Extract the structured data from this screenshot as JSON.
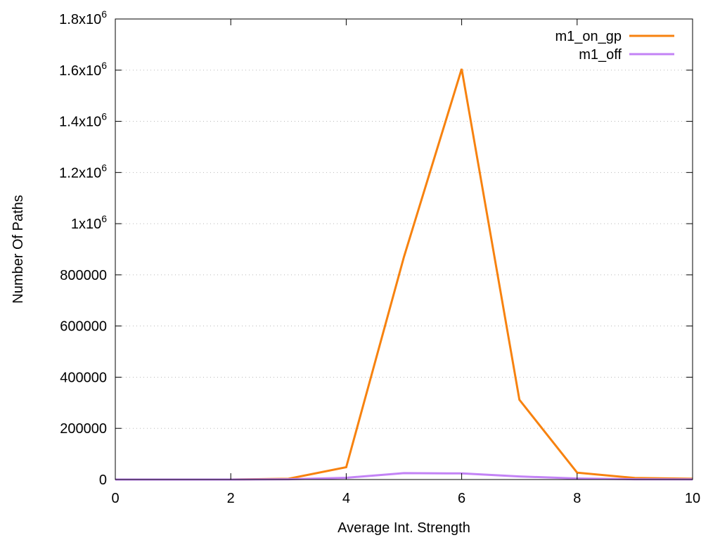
{
  "chart_data": {
    "type": "line",
    "xlabel": "Average Int. Strength",
    "ylabel": "Number Of Paths",
    "xlim": [
      0,
      10
    ],
    "ylim": [
      0,
      1800000
    ],
    "x_ticks": [
      {
        "value": 0,
        "label": "0"
      },
      {
        "value": 2,
        "label": "2"
      },
      {
        "value": 4,
        "label": "4"
      },
      {
        "value": 6,
        "label": "6"
      },
      {
        "value": 8,
        "label": "8"
      },
      {
        "value": 10,
        "label": "10"
      }
    ],
    "y_ticks": [
      {
        "value": 0,
        "label": "0"
      },
      {
        "value": 200000,
        "label": "200000"
      },
      {
        "value": 400000,
        "label": "400000"
      },
      {
        "value": 600000,
        "label": "600000"
      },
      {
        "value": 800000,
        "label": "800000"
      },
      {
        "value": 1000000,
        "mantissa": "1x10",
        "exponent": "6"
      },
      {
        "value": 1200000,
        "mantissa": "1.2x10",
        "exponent": "6"
      },
      {
        "value": 1400000,
        "mantissa": "1.4x10",
        "exponent": "6"
      },
      {
        "value": 1600000,
        "mantissa": "1.6x10",
        "exponent": "6"
      },
      {
        "value": 1800000,
        "mantissa": "1.8x10",
        "exponent": "6"
      }
    ],
    "grid": "horizontal-dotted",
    "legend_position": "top-right",
    "series": [
      {
        "name": "m1_on_gp",
        "color": "#f7820f",
        "x": [
          0,
          1,
          2,
          3,
          4,
          5,
          6,
          7,
          8,
          9,
          10
        ],
        "y": [
          0,
          0,
          0,
          3000,
          48000,
          870000,
          1605000,
          312000,
          27000,
          6000,
          3000
        ]
      },
      {
        "name": "m1_off",
        "color": "#c383f6",
        "x": [
          0,
          1,
          2,
          3,
          4,
          5,
          6,
          7,
          8,
          9,
          10
        ],
        "y": [
          0,
          0,
          0,
          1000,
          7000,
          25000,
          24000,
          12000,
          4000,
          1000,
          500
        ]
      }
    ]
  }
}
